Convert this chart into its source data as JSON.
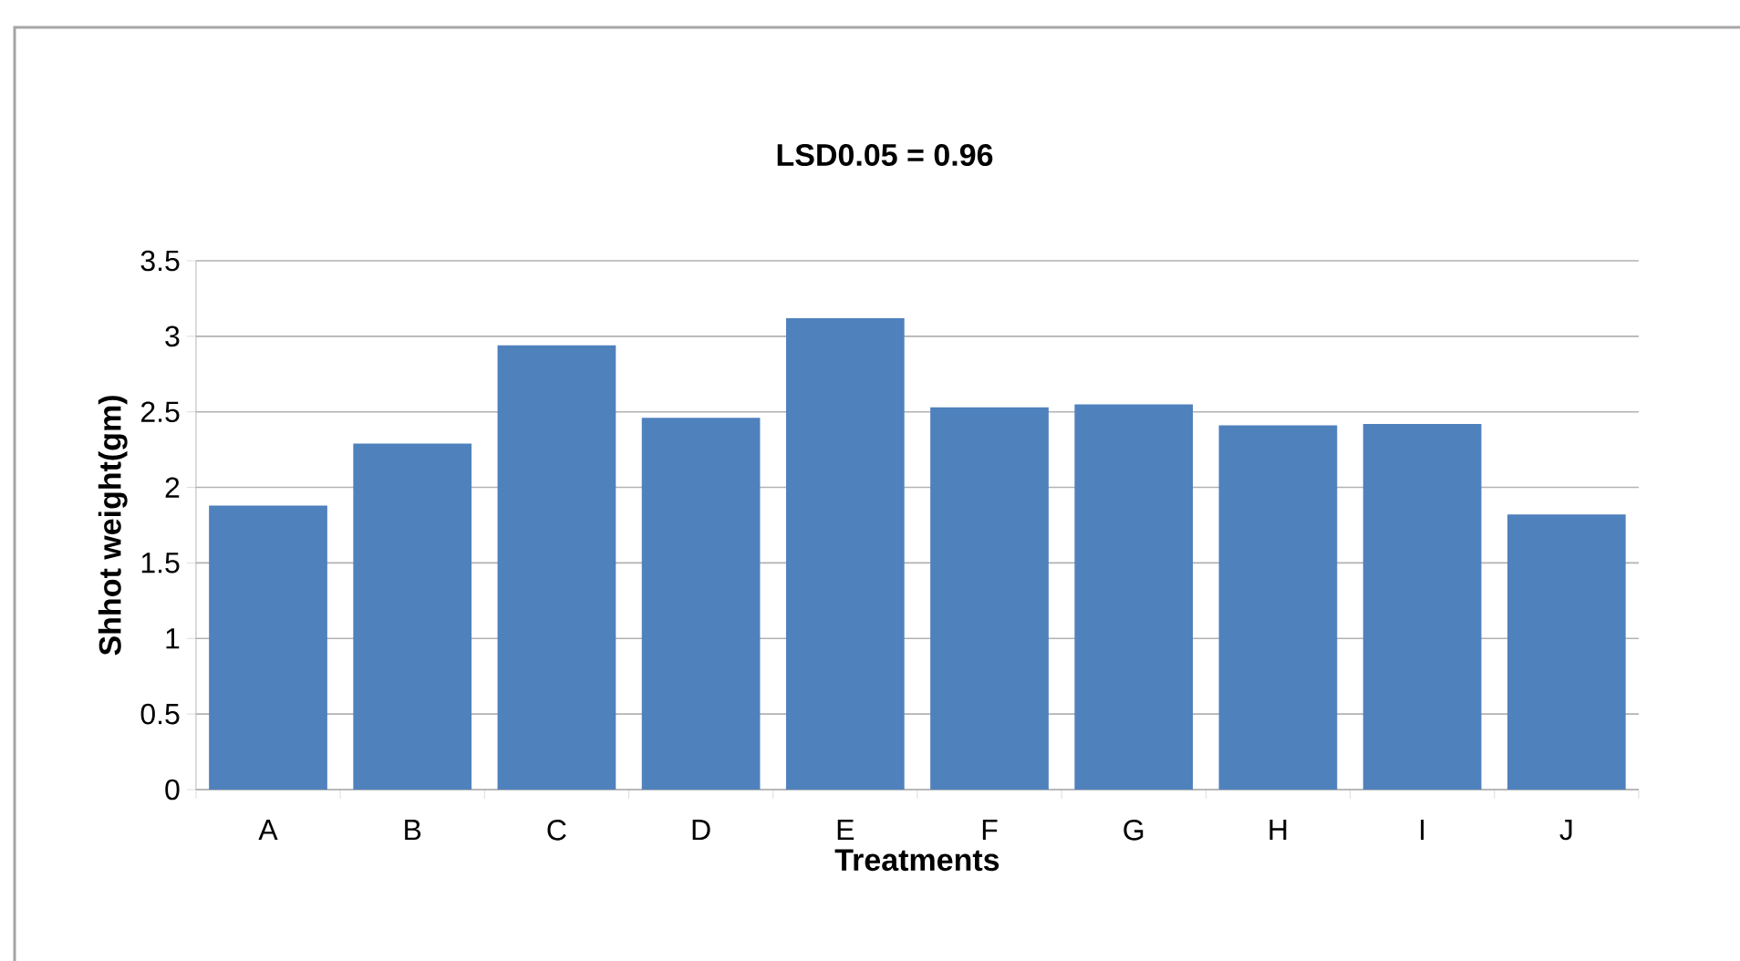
{
  "chart_data": {
    "type": "bar",
    "title": "**LSD0.05 = 0.96**",
    "xlabel": "Treatments",
    "ylabel": "Shhot weight(gm)",
    "categories": [
      "A",
      "B",
      "C",
      "D",
      "E",
      "F",
      "G",
      "H",
      "I",
      "J"
    ],
    "values": [
      1.88,
      2.29,
      2.94,
      2.46,
      3.12,
      2.53,
      2.55,
      2.41,
      2.42,
      1.82
    ],
    "color": "#4f81bd",
    "ylim": [
      0,
      3.5
    ],
    "yticks": [
      0,
      0.5,
      1,
      1.5,
      2,
      2.5,
      3,
      3.5
    ],
    "grid": "y"
  }
}
